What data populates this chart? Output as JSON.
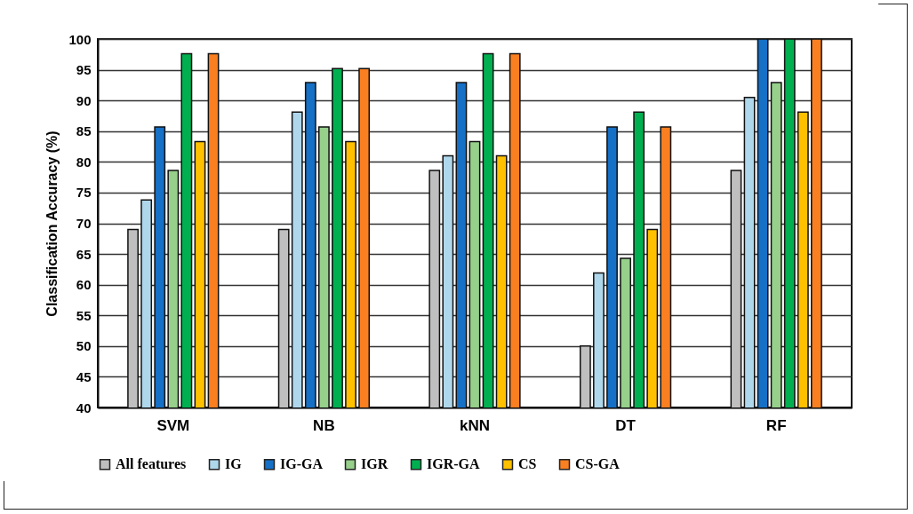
{
  "chart_data": {
    "type": "bar",
    "ylabel": "Classification Accuracy (%)",
    "categories": [
      "SVM",
      "NB",
      "kNN",
      "DT",
      "RF"
    ],
    "series": [
      {
        "name": "All features",
        "color": "#bfbfbf",
        "values": [
          69.0,
          69.0,
          78.6,
          50.0,
          78.6
        ]
      },
      {
        "name": "IG",
        "color": "#afd7ec",
        "values": [
          73.8,
          88.1,
          81.0,
          61.9,
          90.5
        ]
      },
      {
        "name": "IG-GA",
        "color": "#1570c6",
        "values": [
          85.7,
          92.9,
          92.9,
          85.7,
          100
        ]
      },
      {
        "name": "IGR",
        "color": "#96d08b",
        "values": [
          78.6,
          85.7,
          83.3,
          64.3,
          92.9
        ]
      },
      {
        "name": "IGR-GA",
        "color": "#00b050",
        "values": [
          97.6,
          95.2,
          97.6,
          88.1,
          100
        ]
      },
      {
        "name": "CS",
        "color": "#ffc000",
        "values": [
          83.3,
          83.3,
          81.0,
          69.0,
          88.1
        ]
      },
      {
        "name": "CS-GA",
        "color": "#fa7f21",
        "values": [
          97.6,
          95.2,
          97.6,
          85.7,
          100
        ]
      }
    ],
    "ylim": [
      40,
      100
    ],
    "yticks": [
      40,
      45,
      50,
      55,
      60,
      65,
      70,
      75,
      80,
      85,
      90,
      95,
      100
    ],
    "grid": "y",
    "legend": "bottom"
  }
}
